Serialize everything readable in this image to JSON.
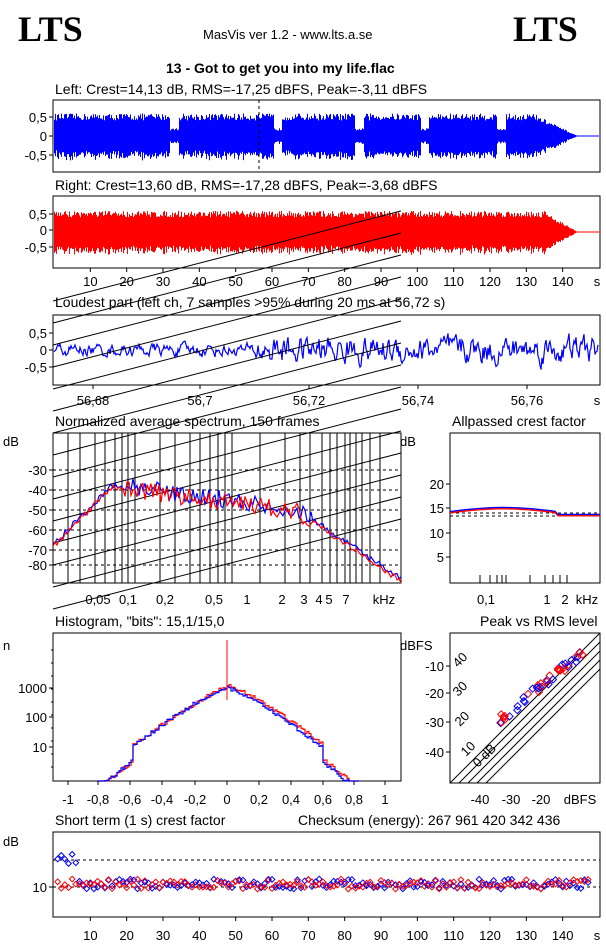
{
  "header": {
    "logo_left": "LTS",
    "logo_right": "LTS",
    "app": "MasVis ver 1.2 - www.lts.a.se",
    "track": "13 - Got to get you into my life.flac"
  },
  "colors": {
    "left": "#0000ff",
    "right": "#ff0000"
  },
  "panels": {
    "left": {
      "title": "Left: Crest=14,13 dB, RMS=-17,25 dBFS, Peak=-3,11 dBFS",
      "yticks": [
        "0,5",
        "0",
        "-0,5"
      ],
      "loudest_marker_s": 56.72
    },
    "right": {
      "title": "Right: Crest=13,60 dB, RMS=-17,28 dBFS, Peak=-3,68 dBFS",
      "yticks": [
        "0,5",
        "0",
        "-0,5"
      ],
      "xticks": [
        "10",
        "20",
        "30",
        "40",
        "50",
        "60",
        "70",
        "80",
        "90",
        "100",
        "110",
        "120",
        "130",
        "140"
      ],
      "xunit": "s",
      "duration_s": 150
    },
    "loudest": {
      "title": "Loudest part (left  ch, 7 samples >95% during 20 ms at 56,72 s)",
      "yticks": [
        "0,5",
        "0",
        "-0,5"
      ],
      "xticks": [
        "56,68",
        "56,7",
        "56,72",
        "56,74",
        "56,76"
      ],
      "xunit": "s"
    },
    "spectrum": {
      "title": "Normalized average spectrum, 150 frames",
      "yunit": "dB",
      "yticks": [
        "-30",
        "-40",
        "-50",
        "-60",
        "-70",
        "-80"
      ],
      "xticks": [
        "0,05",
        "0,1",
        "0,2",
        "0,5",
        "1",
        "2",
        "3",
        "4",
        "5",
        "7"
      ],
      "xunit": "kHz"
    },
    "allpass": {
      "title": "Allpassed crest factor",
      "yunit": "dB",
      "yticks": [
        "20",
        "15",
        "10",
        "5"
      ],
      "xticks": [
        "0,1",
        "1",
        "2"
      ],
      "xunit": "kHz",
      "left_db": 15.0,
      "right_db": 15.0
    },
    "histogram": {
      "title": "Histogram, \"bits\": 15,1/15,0",
      "yunit": "n",
      "yticks": [
        "1000",
        "100",
        "10"
      ],
      "xticks": [
        "-1",
        "-0,8",
        "-0,6",
        "-0,4",
        "-0,2",
        "0",
        "0,2",
        "0,4",
        "0,6",
        "0,8",
        "1"
      ]
    },
    "peakrms": {
      "title": "Peak vs RMS level",
      "yunit": "dBFS",
      "yticks": [
        "-10",
        "-20",
        "-30",
        "-40"
      ],
      "xticks": [
        "-40",
        "-30",
        "-20"
      ],
      "xunit": "dBFS",
      "diag": [
        "40",
        "30",
        "20",
        "10",
        "0 dB"
      ]
    },
    "shortterm": {
      "title": "Short term (1 s) crest factor",
      "checksum": "Checksum (energy):  267 961 420 342 436",
      "yunit": "dB",
      "yticks": [
        "10"
      ],
      "xticks": [
        "10",
        "20",
        "30",
        "40",
        "50",
        "60",
        "70",
        "80",
        "90",
        "100",
        "110",
        "120",
        "130",
        "140"
      ],
      "xunit": "s"
    }
  }
}
